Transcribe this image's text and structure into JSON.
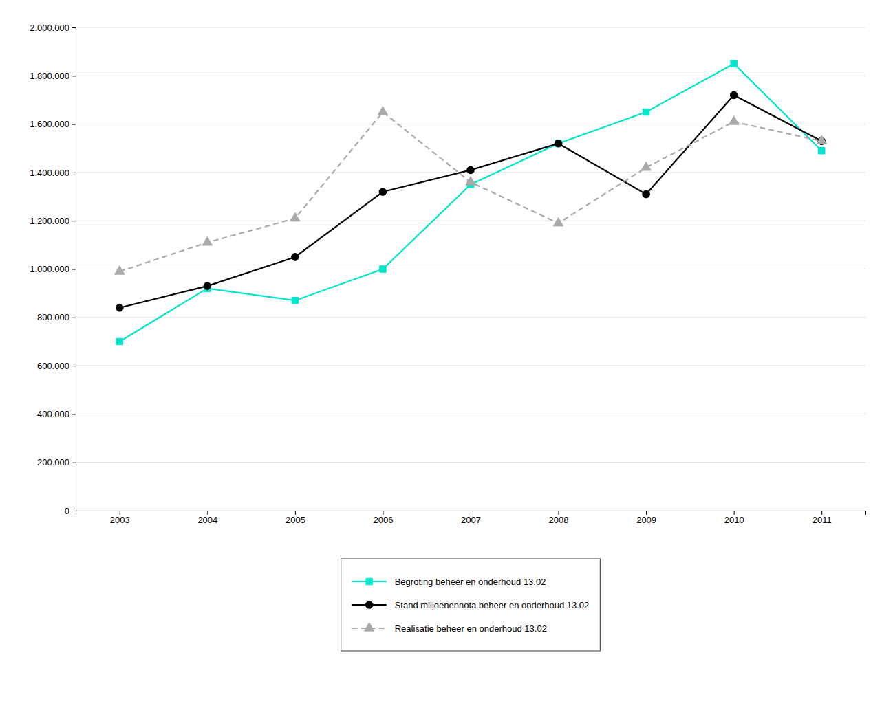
{
  "chart_data": {
    "type": "line",
    "x": [
      2003,
      2004,
      2005,
      2006,
      2007,
      2008,
      2009,
      2010,
      2011
    ],
    "xlim": [
      2002.5,
      2011.5
    ],
    "xticks": [
      2003,
      2004,
      2005,
      2006,
      2007,
      2008,
      2009,
      2010,
      2011
    ],
    "ylim": [
      0,
      2000000
    ],
    "yticks": [
      0,
      {
        "value": 200000,
        "label": "200.000"
      },
      {
        "value": 400000,
        "label": "400.000"
      },
      {
        "value": 600000,
        "label": "600.000"
      },
      {
        "value": 800000,
        "label": "800.000"
      },
      {
        "value": 1000000,
        "label": "1.000.000"
      },
      {
        "value": 1200000,
        "label": "1.200.000"
      },
      {
        "value": 1400000,
        "label": "1.400.000"
      },
      {
        "value": 1600000,
        "label": "1.600.000"
      },
      {
        "value": 1800000,
        "label": "1.800.000"
      },
      {
        "value": 2000000,
        "label": "2.000.000"
      }
    ],
    "grid": true,
    "legend": "bottom",
    "series": [
      {
        "name": "Begroting beheer en onderhoud 13.02",
        "color": "#00e5cc",
        "marker": "square",
        "line_style": "solid",
        "values": [
          700000,
          920000,
          870000,
          1000000,
          1350000,
          1520000,
          1650000,
          1850000,
          1490000
        ]
      },
      {
        "name": "Stand miljoenennota beheer en onderhoud 13.02",
        "color": "#000000",
        "marker": "circle",
        "line_style": "solid",
        "values": [
          840000,
          930000,
          1050000,
          1320000,
          1410000,
          1520000,
          1310000,
          1720000,
          1530000
        ]
      },
      {
        "name": "Realisatie beheer en onderhoud 13.02",
        "color": "#aaaaaa",
        "marker": "triangle",
        "line_style": "dashed",
        "values": [
          990000,
          1110000,
          1210000,
          1650000,
          1360000,
          1190000,
          1420000,
          1610000,
          1530000
        ]
      }
    ]
  }
}
